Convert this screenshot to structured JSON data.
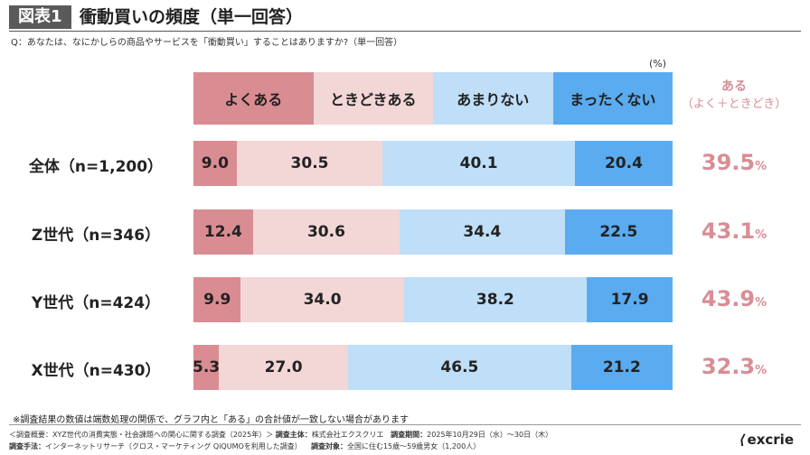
{
  "header": {
    "badge": "図表1",
    "title": "衝動買いの頻度（単一回答）",
    "question": "Q：あなたは、なにかしらの商品やサービスを「衝動買い」することはありますか?（単一回答）"
  },
  "unit_label": "(%)",
  "aru_header": {
    "line1": "ある",
    "line2": "（よく＋ときどき）"
  },
  "colors": {
    "yoku": "#d98d92",
    "tokidoki": "#f3d6d6",
    "amari": "#bfdef7",
    "mattaku": "#5aabf0",
    "aru_text": "#d88e94"
  },
  "chart_data": {
    "type": "bar",
    "stacked": true,
    "orientation": "horizontal",
    "title": "衝動買いの頻度（単一回答）",
    "unit": "%",
    "categories": [
      "全体（n=1,200）",
      "Z世代（n=346）",
      "Y世代（n=424）",
      "X世代（n=430）"
    ],
    "series": [
      {
        "name": "よくある",
        "values": [
          9.0,
          12.4,
          9.9,
          5.3
        ]
      },
      {
        "name": "ときどきある",
        "values": [
          30.5,
          30.6,
          34.0,
          27.0
        ]
      },
      {
        "name": "あまりない",
        "values": [
          40.1,
          34.4,
          38.2,
          46.5
        ]
      },
      {
        "name": "まったくない",
        "values": [
          20.4,
          22.5,
          17.9,
          21.2
        ]
      }
    ],
    "labels": [
      [
        "9.0",
        "30.5",
        "40.1",
        "20.4"
      ],
      [
        "12.4",
        "30.6",
        "34.4",
        "22.5"
      ],
      [
        "9.9",
        "34.0",
        "38.2",
        "17.9"
      ],
      [
        "5.3",
        "27.0",
        "46.5",
        "21.2"
      ]
    ],
    "aru_total": [
      "39.5",
      "43.1",
      "43.9",
      "32.3"
    ],
    "legend_position": "top"
  },
  "note": "※調査結果の数値は端数処理の関係で、グラフ内と「ある」の合計値が一致しない場合があります",
  "footer": {
    "line1_a": "＜調査概要：XYZ世代の消費実態・社会課題への関心に関する調査（2025年）＞",
    "line1_b_label": "調査主体：",
    "line1_b": "株式会社エクスクリエ",
    "line1_c_label": "調査期間：",
    "line1_c": "2025年10月29日（水）〜30日（木）",
    "line2_a_label": "調査手法：",
    "line2_a": "インターネットリサーチ（クロス・マーケティング QiQUMOを利用した調査）",
    "line2_b_label": "調査対象：",
    "line2_b": "全国に住む15歳〜59歳男女（1,200人）"
  },
  "logo": {
    "mark": "⟨",
    "text": "excrie"
  }
}
